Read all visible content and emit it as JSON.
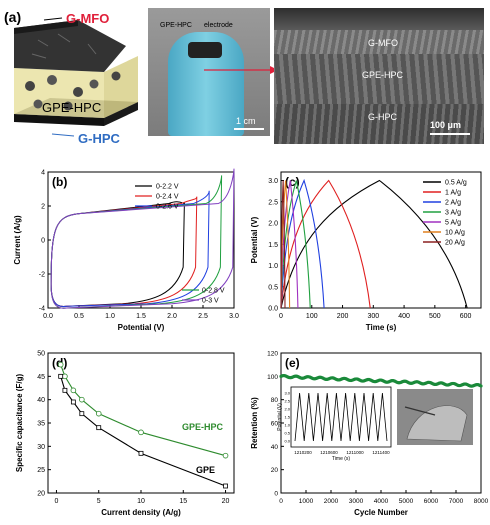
{
  "panel_a": {
    "label": "(a)",
    "schematic": {
      "top_layer": "G-MFO",
      "middle_layer": "GPE-HPC",
      "bottom_layer": "G-HPC"
    },
    "photo": {
      "label_left": "GPE-HPC",
      "label_right": "electrode",
      "scale_bar": "1 cm"
    },
    "sem": {
      "top_layer": "G-MFO",
      "middle_layer": "GPE-HPC",
      "bottom_layer": "G-HPC",
      "scale_bar": "100 μm"
    },
    "colors": {
      "mfo": "#e0203a",
      "hpc": "#2f6cc2",
      "gpe": "#e9e2a2"
    }
  },
  "chart_data": [
    {
      "panel": "(b)",
      "type": "line",
      "xlabel": "Potential (V)",
      "ylabel": "Current (A/g)",
      "xlim": [
        0,
        3.0
      ],
      "ylim": [
        -4,
        4
      ],
      "xticks": [
        "0.0",
        "0.5",
        "1.0",
        "1.5",
        "2.0",
        "2.5",
        "3.0"
      ],
      "yticks": [
        "-4",
        "-2",
        "0",
        "2",
        "4"
      ],
      "series": [
        {
          "name": "0-2.2 V",
          "color": "#000000",
          "vmax": 2.2,
          "top_end": 2.2,
          "bottom": -4.0
        },
        {
          "name": "0-2.4 V",
          "color": "#e02020",
          "vmax": 2.4,
          "top_end": 2.55,
          "bottom": -4.0
        },
        {
          "name": "0-2.6 V",
          "color": "#2040e0",
          "vmax": 2.6,
          "top_end": 2.9,
          "bottom": -4.0
        },
        {
          "name": "0-2.8 V",
          "color": "#20a040",
          "vmax": 2.8,
          "top_end": 3.8,
          "bottom": -4.1
        },
        {
          "name": "0-3 V",
          "color": "#8040c0",
          "vmax": 3.0,
          "top_end": 4.2,
          "bottom": -4.1
        }
      ],
      "legend_top": [
        "0-2.2 V",
        "0-2.4 V",
        "0-2.6 V"
      ],
      "legend_bottom": [
        "0-2.8 V",
        "0-3 V"
      ]
    },
    {
      "panel": "(c)",
      "type": "line",
      "xlabel": "Time (s)",
      "ylabel": "Potential (V)",
      "xlim": [
        0,
        650
      ],
      "ylim": [
        0,
        3.2
      ],
      "xticks": [
        "0",
        "100",
        "200",
        "300",
        "400",
        "500",
        "600"
      ],
      "yticks": [
        "0.0",
        "0.5",
        "1.0",
        "1.5",
        "2.0",
        "2.5",
        "3.0"
      ],
      "series": [
        {
          "name": "0.5 A/g",
          "color": "#000000",
          "t_charge": 320,
          "t_end": 605
        },
        {
          "name": "1 A/g",
          "color": "#e02020",
          "t_charge": 155,
          "t_end": 290
        },
        {
          "name": "2 A/g",
          "color": "#2040e0",
          "t_charge": 75,
          "t_end": 140
        },
        {
          "name": "3 A/g",
          "color": "#20a040",
          "t_charge": 50,
          "t_end": 95
        },
        {
          "name": "5 A/g",
          "color": "#a030c0",
          "t_charge": 30,
          "t_end": 55
        },
        {
          "name": "10 A/g",
          "color": "#e08020",
          "t_charge": 15,
          "t_end": 28
        },
        {
          "name": "20 A/g",
          "color": "#8b2020",
          "t_charge": 7,
          "t_end": 13
        }
      ]
    },
    {
      "panel": "(d)",
      "type": "line",
      "xlabel": "Current density (A/g)",
      "ylabel": "Specific capacitance (F/g)",
      "xlim": [
        -1,
        21
      ],
      "ylim": [
        20,
        50
      ],
      "xticks": [
        "0",
        "5",
        "10",
        "15",
        "20"
      ],
      "yticks": [
        "20",
        "25",
        "30",
        "35",
        "40",
        "45",
        "50"
      ],
      "series": [
        {
          "name": "GPE-HPC",
          "color": "#2e8b2e",
          "x": [
            0.5,
            1,
            2,
            3,
            5,
            10,
            20
          ],
          "y": [
            47.5,
            45,
            42,
            40,
            37,
            33,
            28
          ]
        },
        {
          "name": "GPE",
          "color": "#000000",
          "x": [
            0.5,
            1,
            2,
            3,
            5,
            10,
            20
          ],
          "y": [
            45,
            42,
            39.5,
            37,
            34,
            28.5,
            21.5
          ]
        }
      ]
    },
    {
      "panel": "(e)",
      "type": "scatter",
      "xlabel": "Cycle Number",
      "ylabel": "Retention (%)",
      "xlim": [
        0,
        8000
      ],
      "ylim": [
        0,
        120
      ],
      "xticks": [
        "0",
        "1000",
        "2000",
        "3000",
        "4000",
        "5000",
        "6000",
        "7000",
        "8000"
      ],
      "yticks": [
        "0",
        "20",
        "40",
        "60",
        "80",
        "100",
        "120"
      ],
      "color": "#1a8a3a",
      "retention_start": 100,
      "retention_end": 92,
      "inset": {
        "xlabel": "Time (s)",
        "ylabel": "Potential (V)",
        "xticks": [
          "1210200",
          "1210600",
          "1211000",
          "1211400"
        ],
        "yticks": [
          "0.0",
          "0.5",
          "1.0",
          "1.5",
          "2.0",
          "2.5",
          "3.0"
        ],
        "cycles": 10
      }
    }
  ]
}
